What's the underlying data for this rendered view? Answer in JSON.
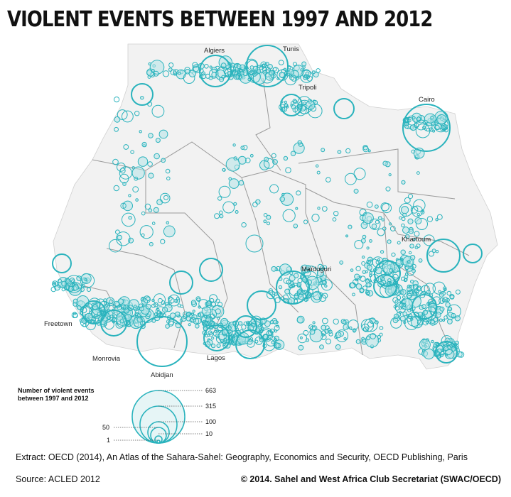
{
  "title": "VIOLENT EVENTS BETWEEN 1997 AND 2012",
  "cities": [
    {
      "name": "Algiers"
    },
    {
      "name": "Tunis"
    },
    {
      "name": "Tripoli"
    },
    {
      "name": "Cairo"
    },
    {
      "name": "Khartoum"
    },
    {
      "name": "Maïduguri"
    },
    {
      "name": "Freetown"
    },
    {
      "name": "Monrovia"
    },
    {
      "name": "Abidjan"
    },
    {
      "name": "Lagos"
    }
  ],
  "legend": {
    "title_line1": "Number of violent events",
    "title_line2": "between 1997 and 2012",
    "values": [
      663,
      315,
      100,
      50,
      10,
      1
    ],
    "labels": [
      "663",
      "315",
      "100",
      "50",
      "10",
      "1"
    ]
  },
  "extract": "Extract: OECD (2014), An Atlas of the Sahara-Sahel: Geography, Economics  and Security, OECD Publishing, Paris",
  "source": "Source: ACLED 2012",
  "copyright": "© 2014. Sahel and West Africa Club Secretariat (SWAC/OECD)",
  "colors": {
    "circle": "#2ab3bd",
    "fill": "#bfe7ea",
    "land": "#f3f3f3",
    "sea": "#ffffff",
    "border": "#9a9a9a"
  }
}
